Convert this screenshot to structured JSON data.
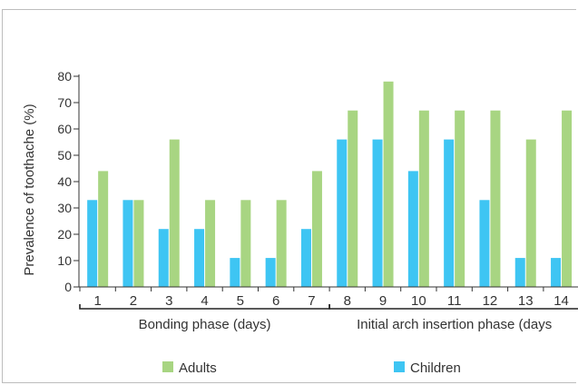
{
  "chart_data": {
    "type": "bar",
    "title": "",
    "ylabel": "Prevalence of toothache (%)",
    "xlabel": "",
    "ylim": [
      0,
      80
    ],
    "yticks": [
      0,
      10,
      20,
      30,
      40,
      50,
      60,
      70,
      80
    ],
    "categories": [
      "1",
      "2",
      "3",
      "4",
      "5",
      "6",
      "7",
      "8",
      "9",
      "10",
      "11",
      "12",
      "13",
      "14"
    ],
    "series": [
      {
        "name": "Children",
        "color": "#3ec5f3",
        "values": [
          33,
          33,
          22,
          22,
          11,
          11,
          22,
          56,
          56,
          44,
          56,
          33,
          11,
          11
        ]
      },
      {
        "name": "Adults",
        "color": "#a8d582",
        "values": [
          44,
          33,
          56,
          33,
          33,
          33,
          44,
          67,
          78,
          67,
          67,
          67,
          56,
          67
        ]
      }
    ],
    "phases": [
      {
        "label": "Bonding phase (days)",
        "from": "1",
        "to": "7"
      },
      {
        "label": "Initial arch insertion phase (days",
        "from": "8",
        "to": "14"
      }
    ],
    "legend": {
      "placement": "bottom",
      "order": [
        "Adults",
        "Children"
      ]
    },
    "grid": false
  }
}
